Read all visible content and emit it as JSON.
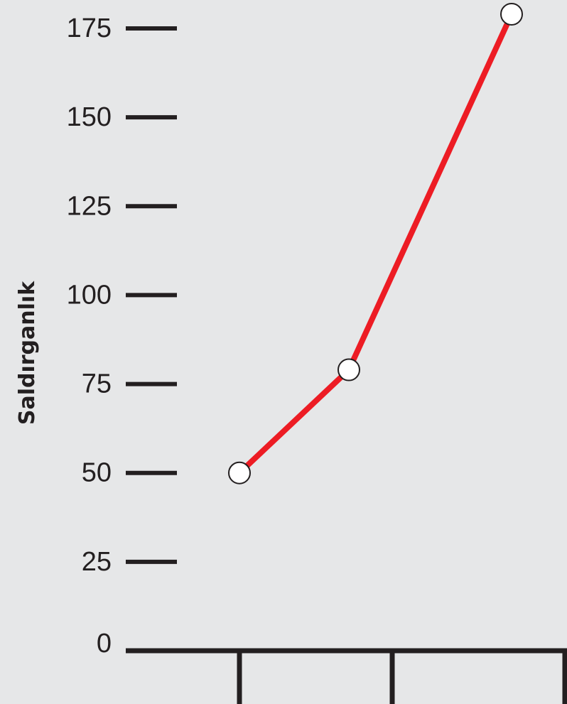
{
  "chart_data": {
    "type": "line",
    "ylabel": "Saldırganlık",
    "xlabel": "",
    "ylim": [
      0,
      175
    ],
    "yticks": [
      0,
      25,
      50,
      75,
      100,
      125,
      150,
      175
    ],
    "ytick_labels": [
      "0",
      "25",
      "50",
      "75",
      "100",
      "125",
      "150",
      "175"
    ],
    "x": [
      1,
      2,
      3
    ],
    "series": [
      {
        "values": [
          50,
          79,
          179
        ]
      }
    ],
    "grid": false,
    "colors": {
      "background": "#e6e7e8",
      "line": "#ed1c24",
      "axis": "#231f20",
      "marker_fill": "#ffffff"
    }
  }
}
